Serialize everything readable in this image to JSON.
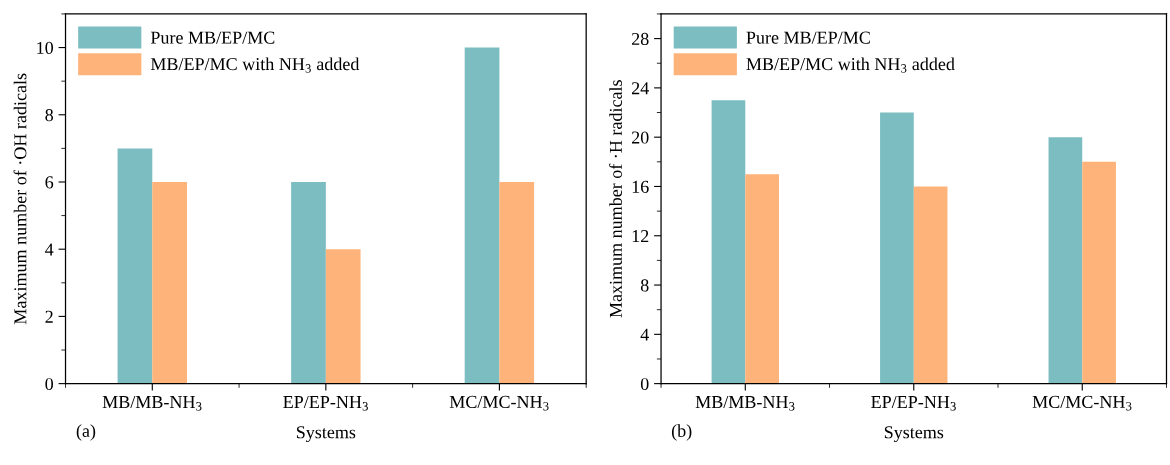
{
  "chart_data": [
    {
      "type": "bar",
      "categories": [
        "MB/MB-NH$_{3}$",
        "EP/EP-NH$_{3}$",
        "MC/MC-NH$_{3}$"
      ],
      "xlabel": "Systems",
      "ylabel": "Maximum number of ·OH radicals",
      "series": [
        {
          "name": "Pure MB/EP/MC",
          "color": "#7bbdc0",
          "values": [
            7,
            6,
            10
          ]
        },
        {
          "name": "MB/EP/MC with NH$_{3}$ added",
          "color": "#fdb37a",
          "values": [
            6,
            4,
            6
          ]
        }
      ],
      "ylim": [
        0,
        11
      ],
      "yticks": [
        0,
        2,
        4,
        6,
        8,
        10
      ],
      "legend": "top left",
      "grid": false,
      "annotations": [
        "(a)"
      ]
    },
    {
      "type": "bar",
      "categories": [
        "MB/MB-NH$_{3}$",
        "EP/EP-NH$_{3}$",
        "MC/MC-NH$_{3}$"
      ],
      "xlabel": "Systems",
      "ylabel": "Maximum number of ·H radicals",
      "series": [
        {
          "name": "Pure MB/EP/MC",
          "color": "#7bbdc0",
          "values": [
            23,
            22,
            20
          ]
        },
        {
          "name": "MB/EP/MC with NH$_{3}$ added",
          "color": "#fdb37a",
          "values": [
            17,
            16,
            18
          ]
        }
      ],
      "ylim": [
        0,
        30
      ],
      "yticks": [
        0,
        4,
        8,
        12,
        16,
        20,
        24,
        28
      ],
      "legend": "top left",
      "grid": false,
      "annotations": [
        "(b)"
      ]
    }
  ]
}
